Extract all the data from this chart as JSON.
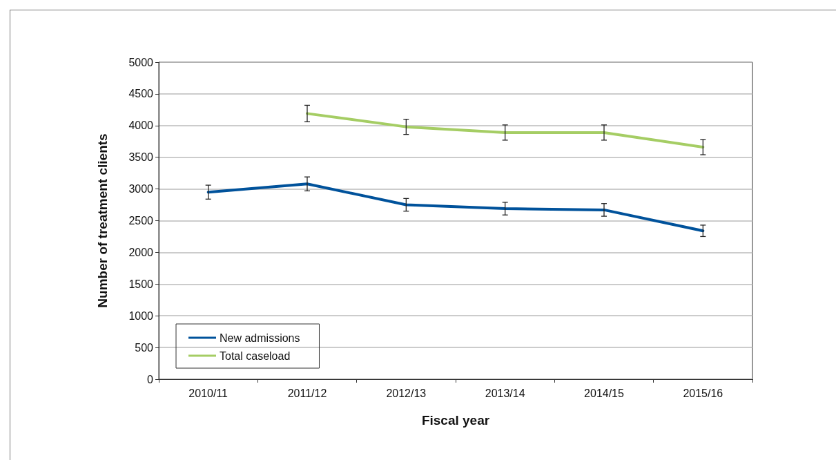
{
  "chart_data": {
    "type": "line",
    "xlabel": "Fiscal year",
    "ylabel": "Number of treatment clients",
    "categories": [
      "2010/11",
      "2011/12",
      "2012/13",
      "2013/14",
      "2014/15",
      "2015/16"
    ],
    "series": [
      {
        "name": "New admissions",
        "color": "#00529b",
        "values": [
          2950,
          3080,
          2750,
          2690,
          2670,
          2340
        ],
        "errors": [
          110,
          110,
          100,
          100,
          100,
          90
        ]
      },
      {
        "name": "Total caseload",
        "color": "#a5cd64",
        "values": [
          null,
          4190,
          3980,
          3890,
          3890,
          3660
        ],
        "errors": [
          null,
          130,
          120,
          120,
          120,
          120
        ]
      }
    ],
    "ylim": [
      0,
      5000
    ],
    "yticks": [
      0,
      500,
      1000,
      1500,
      2000,
      2500,
      3000,
      3500,
      4000,
      4500,
      5000
    ],
    "grid": "y",
    "legend": "bottom left",
    "marker": "none",
    "line_style": "solid"
  }
}
